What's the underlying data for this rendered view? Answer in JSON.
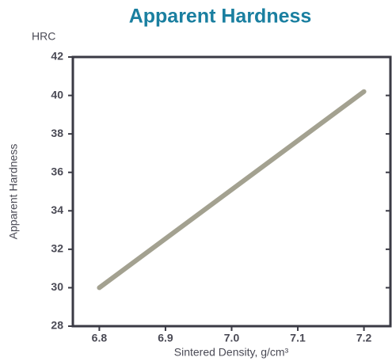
{
  "chart_data": {
    "type": "line",
    "title": "Apparent Hardness",
    "unit_label": "HRC",
    "ylabel": "Apparent Hardness",
    "xlabel": "Sintered Density, g/cm³",
    "x": [
      6.8,
      7.2
    ],
    "values": [
      30,
      40.2
    ],
    "color": "#a3a190",
    "xlim": [
      6.76,
      7.24
    ],
    "ylim": [
      28,
      42
    ],
    "xticks": [
      6.8,
      6.9,
      {
        "value": 7,
        "label": "7.0"
      },
      7.1,
      7.2
    ],
    "yticks": [
      28,
      30,
      32,
      34,
      36,
      38,
      40,
      42
    ]
  }
}
